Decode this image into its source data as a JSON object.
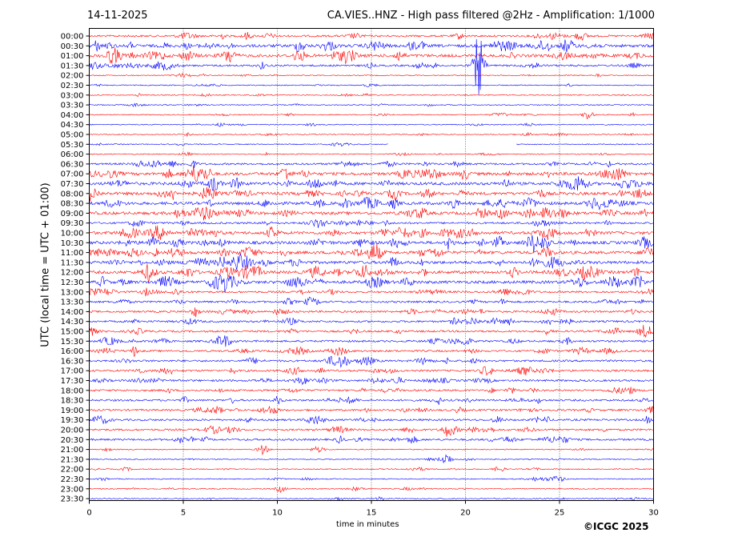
{
  "header": {
    "date": "14-11-2025",
    "title": "CA.VIES..HNZ - High pass filtered @2Hz - Amplification: 1/1000"
  },
  "footer": {
    "copyright": "©ICGC 2025"
  },
  "chart_data": {
    "type": "line",
    "title": "CA.VIES..HNZ - High pass filtered @2Hz - Amplification: 1/1000",
    "xlabel": "time in minutes",
    "ylabel": "UTC (local time = UTC + 01:00)",
    "xlim": [
      0,
      30
    ],
    "xticks": [
      0,
      5,
      10,
      15,
      20,
      25,
      30
    ],
    "grid": "vertical dotted lines at x ticks",
    "y_categories": [
      "00:00",
      "00:30",
      "01:00",
      "01:30",
      "02:00",
      "02:30",
      "03:00",
      "03:30",
      "04:00",
      "04:30",
      "05:00",
      "05:30",
      "06:00",
      "06:30",
      "07:00",
      "07:30",
      "08:00",
      "08:30",
      "09:00",
      "09:30",
      "10:00",
      "10:30",
      "11:00",
      "11:30",
      "12:00",
      "12:30",
      "13:00",
      "13:30",
      "14:00",
      "14:30",
      "15:00",
      "15:30",
      "16:00",
      "16:30",
      "17:00",
      "17:30",
      "18:00",
      "18:30",
      "19:00",
      "19:30",
      "20:00",
      "20:30",
      "21:00",
      "21:30",
      "22:00",
      "22:30",
      "23:00",
      "23:30"
    ],
    "trace_colors": [
      "#ff0000",
      "#0000ff"
    ],
    "trace_amplitude": [
      2,
      3,
      3,
      2,
      1,
      1,
      1,
      1,
      1,
      1,
      1,
      1,
      1,
      2,
      3,
      3,
      3,
      3,
      3,
      2,
      3,
      3,
      3,
      3,
      3,
      3,
      2,
      2,
      2,
      2,
      2,
      2,
      2,
      2,
      2,
      2,
      2,
      2,
      2,
      2,
      2,
      2,
      1,
      1,
      1,
      1,
      1,
      1
    ],
    "events": [
      {
        "row": "00:30",
        "x": 11.2,
        "amp": 8
      },
      {
        "row": "00:30",
        "x": 24.3,
        "amp": 6
      },
      {
        "row": "01:00",
        "x": 7.5,
        "amp": 4
      },
      {
        "row": "01:30",
        "x": 20.7,
        "amp": 40
      },
      {
        "row": "04:00",
        "x": 26.5,
        "amp": 6
      },
      {
        "row": "05:30",
        "x": 22.3,
        "amp": 8
      },
      {
        "row": "07:00",
        "x": 11.5,
        "amp": 4
      },
      {
        "row": "08:00",
        "x": 4.5,
        "amp": 6
      },
      {
        "row": "09:00",
        "x": 17.7,
        "amp": 5
      },
      {
        "row": "10:00",
        "x": 13.0,
        "amp": 5
      },
      {
        "row": "12:30",
        "x": 11.0,
        "amp": 4
      },
      {
        "row": "17:00",
        "x": 21.0,
        "amp": 4
      },
      {
        "row": "20:30",
        "x": 4.8,
        "amp": 4
      },
      {
        "row": "21:00",
        "x": 9.2,
        "amp": 5
      },
      {
        "row": "21:30",
        "x": 19.0,
        "amp": 8
      },
      {
        "row": "22:00",
        "x": 21.8,
        "amp": 4
      },
      {
        "row": "23:00",
        "x": 10.2,
        "amp": 4
      }
    ],
    "gaps": [
      {
        "row": "05:30",
        "from": 15.9,
        "to": 22.7
      }
    ]
  }
}
